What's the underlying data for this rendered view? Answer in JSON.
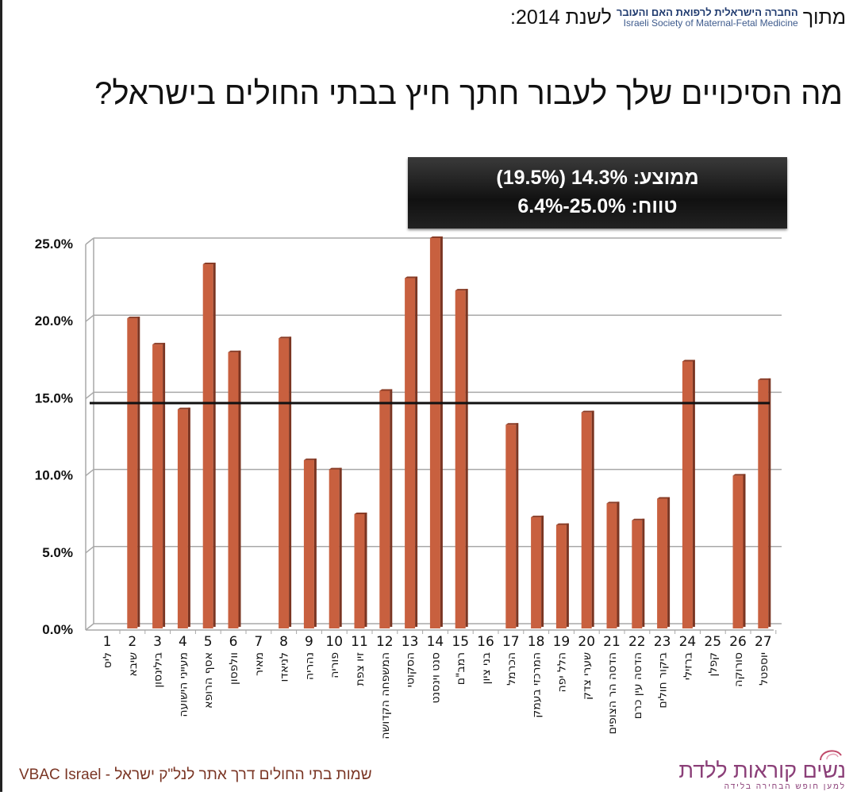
{
  "header": {
    "from_label": "מתוך",
    "society_he": "החברה הישראלית לרפואת האם והעובר",
    "society_en": "Israeli Society of Maternal-Fetal Medicine",
    "year_label": "לשנת 2014:"
  },
  "title": "מה הסיכויים שלך לעבור חתך חיץ בבתי החולים בישראל?",
  "stats_box": {
    "average": "ממוצע: 14.3% (19.5%)",
    "range": "טווח: 25.0%-6.4%"
  },
  "chart_data": {
    "type": "bar",
    "title": "מה הסיכויים שלך לעבור חתך חיץ בבתי החולים בישראל?",
    "ylim": [
      0,
      25
    ],
    "yticks": [
      "0.0%",
      "5.0%",
      "10.0%",
      "15.0%",
      "20.0%",
      "25.0%"
    ],
    "grid": true,
    "bar_color": "#c8603f",
    "reference_line": {
      "value": 14.3,
      "color": "#111111"
    },
    "categories": [
      {
        "num": "1",
        "name": "ליס"
      },
      {
        "num": "2",
        "name": "שיבא"
      },
      {
        "num": "3",
        "name": "בילינסון"
      },
      {
        "num": "4",
        "name": "מעייני הישועה"
      },
      {
        "num": "5",
        "name": "אסף הרופא"
      },
      {
        "num": "6",
        "name": "וולפסון"
      },
      {
        "num": "7",
        "name": "מאיר"
      },
      {
        "num": "8",
        "name": "לניאדו"
      },
      {
        "num": "9",
        "name": "נהריה"
      },
      {
        "num": "10",
        "name": "פוריה"
      },
      {
        "num": "11",
        "name": "זיו צפת"
      },
      {
        "num": "12",
        "name": "המשפחה הקדושה"
      },
      {
        "num": "13",
        "name": "הסקוטי"
      },
      {
        "num": "14",
        "name": "סנט וינסנט"
      },
      {
        "num": "15",
        "name": "רמב\"ם"
      },
      {
        "num": "16",
        "name": "בני ציון"
      },
      {
        "num": "17",
        "name": "הכרמל"
      },
      {
        "num": "18",
        "name": "המרכזי בעמק"
      },
      {
        "num": "19",
        "name": "הלל יפה"
      },
      {
        "num": "20",
        "name": "שערי צדק"
      },
      {
        "num": "21",
        "name": "הדסה הר הצופים"
      },
      {
        "num": "22",
        "name": "הדסה עין כרם"
      },
      {
        "num": "23",
        "name": "ביקור חולים"
      },
      {
        "num": "24",
        "name": "ברזילי"
      },
      {
        "num": "25",
        "name": "קפלן"
      },
      {
        "num": "26",
        "name": "סורוקה"
      },
      {
        "num": "27",
        "name": "יוספטל"
      }
    ],
    "values": [
      null,
      19.8,
      18.1,
      13.9,
      23.3,
      17.6,
      null,
      18.5,
      10.6,
      10.0,
      7.1,
      15.1,
      22.4,
      25.0,
      21.6,
      null,
      12.9,
      6.9,
      6.4,
      13.7,
      7.8,
      6.7,
      8.1,
      17.0,
      null,
      9.6,
      15.8
    ]
  },
  "footer": {
    "note": "שמות בתי החולים דרך אתר לנל\"ק ישראל - VBAC Israel",
    "logo_name": "נשים קוראות ללדת",
    "logo_tagline": "למען חופש הבחירה בלידה"
  }
}
